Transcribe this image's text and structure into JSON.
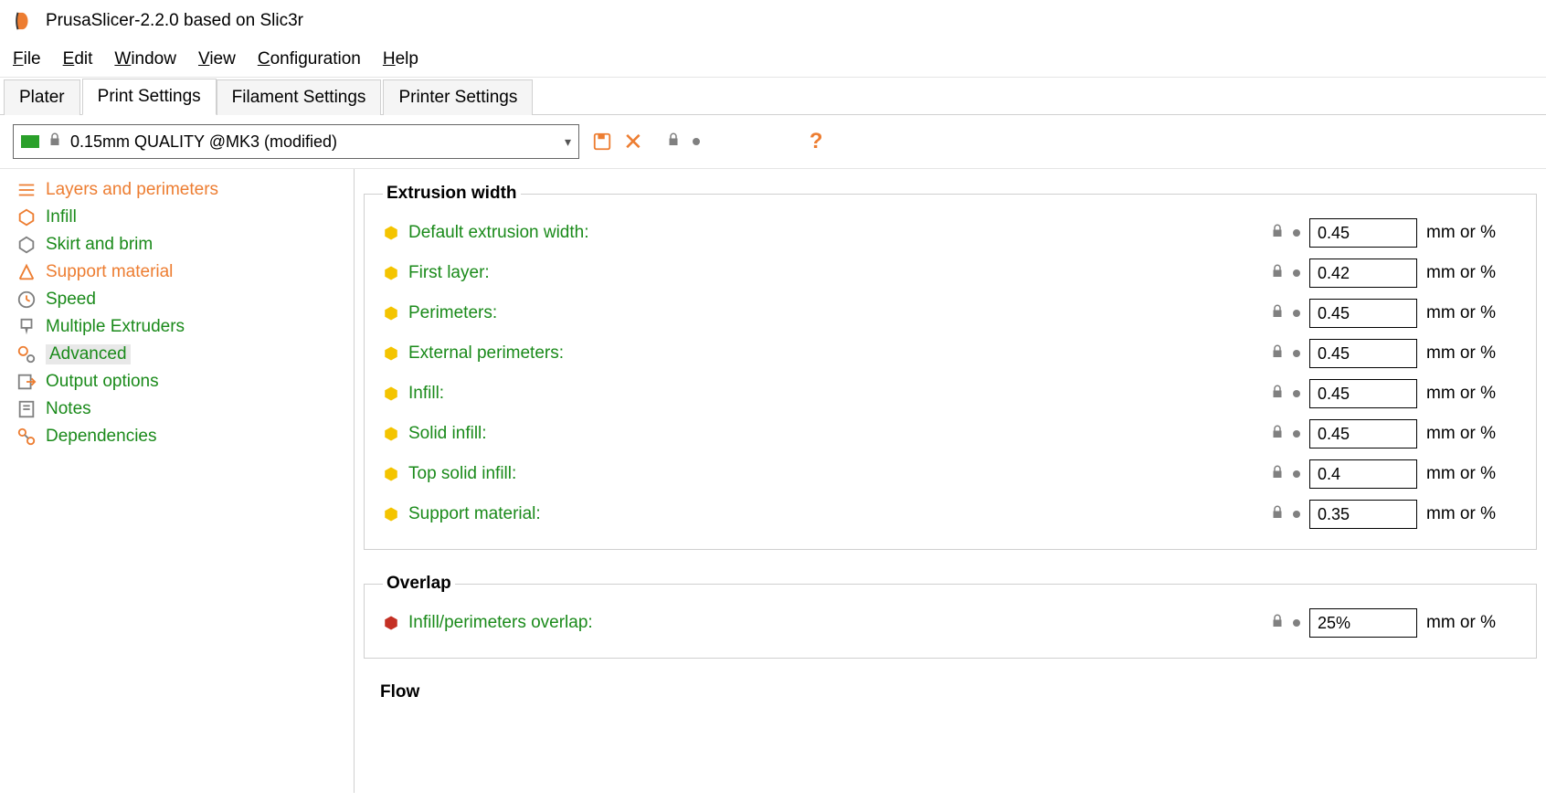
{
  "colors": {
    "accent_orange": "#ed7d31",
    "accent_green": "#1a8a1a",
    "bullet_yellow": "#f4c400",
    "bullet_red": "#c43024",
    "lock_grey": "#808080",
    "border_grey": "#d0d0d0",
    "input_border": "#000000"
  },
  "window": {
    "title": "PrusaSlicer-2.2.0 based on Slic3r"
  },
  "menu": {
    "file": "File",
    "edit": "Edit",
    "window": "Window",
    "view": "View",
    "configuration": "Configuration",
    "help": "Help"
  },
  "tabs": {
    "plater": "Plater",
    "print_settings": "Print Settings",
    "filament_settings": "Filament Settings",
    "printer_settings": "Printer Settings",
    "active": "print_settings"
  },
  "preset": {
    "selected": "0.15mm QUALITY @MK3 (modified)"
  },
  "sidebar": {
    "items": [
      {
        "id": "layers",
        "label": "Layers and perimeters",
        "color": "orange",
        "icon": "lines"
      },
      {
        "id": "infill",
        "label": "Infill",
        "color": "green",
        "icon": "hex"
      },
      {
        "id": "skirt",
        "label": "Skirt and brim",
        "color": "green",
        "icon": "hexo"
      },
      {
        "id": "support",
        "label": "Support material",
        "color": "orange",
        "icon": "supp"
      },
      {
        "id": "speed",
        "label": "Speed",
        "color": "green",
        "icon": "clock"
      },
      {
        "id": "mext",
        "label": "Multiple Extruders",
        "color": "green",
        "icon": "ext"
      },
      {
        "id": "advanced",
        "label": "Advanced",
        "color": "green",
        "icon": "gears",
        "selected": true
      },
      {
        "id": "output",
        "label": "Output options",
        "color": "green",
        "icon": "out"
      },
      {
        "id": "notes",
        "label": "Notes",
        "color": "green",
        "icon": "notes"
      },
      {
        "id": "deps",
        "label": "Dependencies",
        "color": "green",
        "icon": "deps"
      }
    ]
  },
  "groups": {
    "extrusion": {
      "title": "Extrusion width",
      "rows": [
        {
          "label": "Default extrusion width:",
          "value": "0.45",
          "unit": "mm or %",
          "bullet": "yellow"
        },
        {
          "label": "First layer:",
          "value": "0.42",
          "unit": "mm or %",
          "bullet": "yellow"
        },
        {
          "label": "Perimeters:",
          "value": "0.45",
          "unit": "mm or %",
          "bullet": "yellow"
        },
        {
          "label": "External perimeters:",
          "value": "0.45",
          "unit": "mm or %",
          "bullet": "yellow"
        },
        {
          "label": "Infill:",
          "value": "0.45",
          "unit": "mm or %",
          "bullet": "yellow"
        },
        {
          "label": "Solid infill:",
          "value": "0.45",
          "unit": "mm or %",
          "bullet": "yellow"
        },
        {
          "label": "Top solid infill:",
          "value": "0.4",
          "unit": "mm or %",
          "bullet": "yellow"
        },
        {
          "label": "Support material:",
          "value": "0.35",
          "unit": "mm or %",
          "bullet": "yellow"
        }
      ]
    },
    "overlap": {
      "title": "Overlap",
      "rows": [
        {
          "label": "Infill/perimeters overlap:",
          "value": "25%",
          "unit": "mm or %",
          "bullet": "red"
        }
      ]
    },
    "flow": {
      "title": "Flow"
    }
  }
}
